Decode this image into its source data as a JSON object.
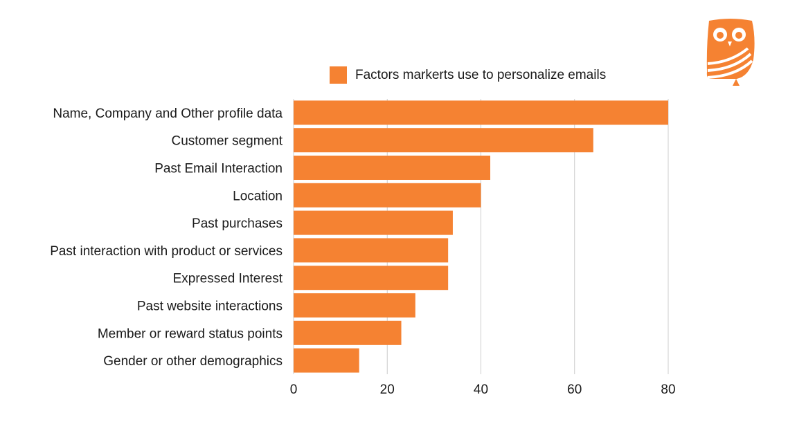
{
  "chart_data": {
    "type": "bar",
    "orientation": "horizontal",
    "categories": [
      "Name, Company and Other profile data",
      "Customer segment",
      "Past Email Interaction",
      "Location",
      "Past purchases",
      "Past interaction with product or services",
      "Expressed Interest",
      "Past website interactions",
      "Member or reward status points",
      "Gender or other demographics"
    ],
    "series": [
      {
        "name": "Factors markerts use to personalize emails",
        "values": [
          80,
          64,
          42,
          40,
          34,
          33,
          33,
          26,
          23,
          14
        ]
      }
    ],
    "xlim": [
      0,
      80
    ],
    "xticks": [
      "0",
      "20",
      "40",
      "60",
      "80"
    ],
    "grid": "vertical",
    "legend": "top",
    "bar_color": "#F58232",
    "grid_color": "#cccccc"
  },
  "logo": {
    "name": "owl-logo",
    "color": "#F58232"
  }
}
